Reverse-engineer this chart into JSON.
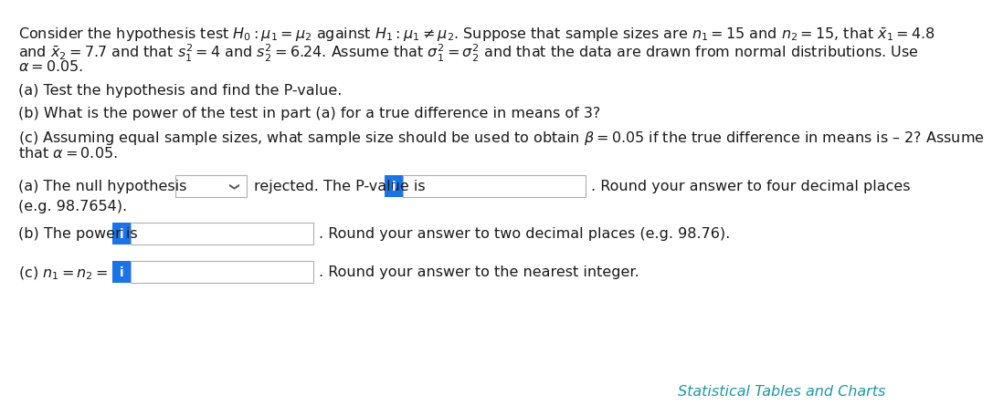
{
  "background_color": "#ffffff",
  "text_color": "#1a1a1a",
  "blue_color": "#1a73e8",
  "teal_link_color": "#1a9ba0",
  "box_border_color": "#b0b0b0",
  "paragraph1": "Consider the hypothesis test $H_0 : \\mu_1 = \\mu_2$ against $H_1 : \\mu_1 \\neq \\mu_2$. Suppose that sample sizes are $n_1 = 15$ and $n_2 = 15$, that $\\bar{x}_1 = 4.8$",
  "paragraph1b": "and $\\bar{x}_2 = 7.7$ and that $s_1^2 = 4$ and $s_2^2 = 6.24$. Assume that $\\sigma_1^2 = \\sigma_2^2$ and that the data are drawn from normal distributions. Use",
  "paragraph1c": "$\\alpha = 0.05$.",
  "paragraph2": "(a) Test the hypothesis and find the P-value.",
  "paragraph3": "(b) What is the power of the test in part (a) for a true difference in means of 3?",
  "paragraph4": "(c) Assuming equal sample sizes, what sample size should be used to obtain $\\beta = 0.05$ if the true difference in means is – 2? Assume",
  "paragraph4b": "that $\\alpha = 0.05$.",
  "answer_a_label": "(a) The null hypothesis",
  "answer_a_mid": "rejected. The P-value is",
  "answer_a_end": ". Round your answer to four decimal places",
  "answer_a_end2": "(e.g. 98.7654).",
  "answer_b_label": "(b) The power is",
  "answer_b_end": ". Round your answer to two decimal places (e.g. 98.76).",
  "answer_c_label": "(c) $n_1 = n_2 =$",
  "answer_c_end": ". Round your answer to the nearest integer.",
  "footer": "Statistical Tables and Charts",
  "fontsize_main": 11.5
}
